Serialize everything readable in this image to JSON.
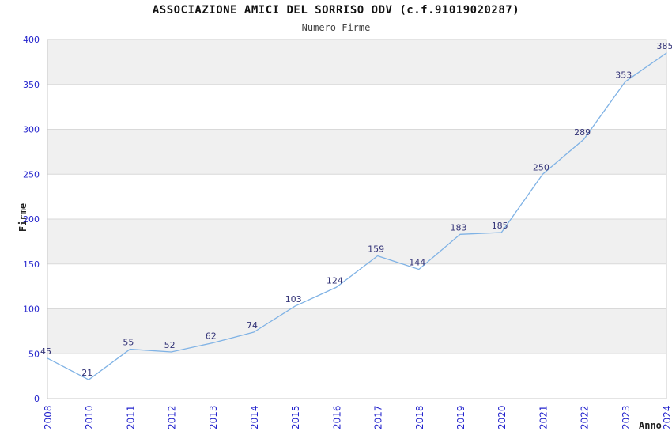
{
  "chart_data": {
    "type": "line",
    "title": "ASSOCIAZIONE AMICI DEL SORRISO ODV (c.f.91019020287)",
    "subtitle": "Numero Firme",
    "xlabel": "Anno",
    "ylabel": "Firme",
    "categories": [
      "2008",
      "2010",
      "2011",
      "2012",
      "2013",
      "2014",
      "2015",
      "2016",
      "2017",
      "2018",
      "2019",
      "2020",
      "2021",
      "2022",
      "2023",
      "2024"
    ],
    "values": [
      45,
      21,
      55,
      52,
      62,
      74,
      103,
      124,
      159,
      144,
      183,
      185,
      250,
      289,
      353,
      385
    ],
    "ylim": [
      0,
      400
    ],
    "ytick_step": 50,
    "yticks": [
      0,
      50,
      100,
      150,
      200,
      250,
      300,
      350,
      400
    ],
    "grid": true,
    "legend_position": "none",
    "band_pattern": "alternating horizontal bands, gray between 50-100, 150-200, 250-300, 350-400",
    "colors": {
      "line": "#7fb2e5",
      "tick_label": "#2323cd",
      "data_label": "#333377",
      "band_gray": "#f0f0f0",
      "band_white": "#ffffff",
      "gridline": "#d9d9d9",
      "plot_border": "#c8c8c8",
      "title": "#111111",
      "subtitle": "#444444",
      "axis_title": "#222222"
    }
  }
}
